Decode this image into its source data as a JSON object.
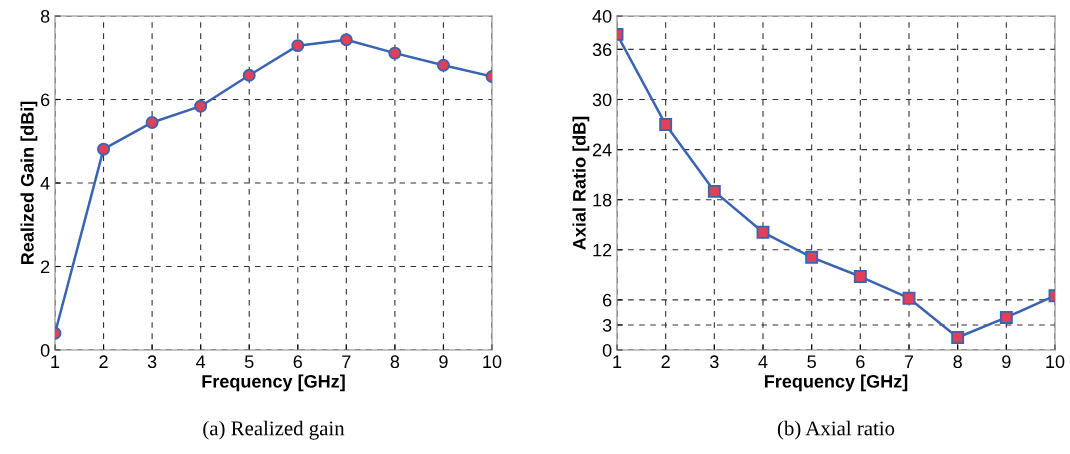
{
  "chart_data": [
    {
      "type": "line",
      "title": "(a) Realized gain",
      "xlabel": "Frequency [GHz]",
      "ylabel": "Realized Gain [dBi]",
      "x": [
        1,
        2,
        3,
        4,
        5,
        6,
        7,
        8,
        9,
        10
      ],
      "xlim": [
        1,
        10
      ],
      "xticks": [
        1,
        2,
        3,
        4,
        5,
        6,
        7,
        8,
        9,
        10
      ],
      "ylim": [
        0,
        8
      ],
      "yticks": [
        0,
        2,
        4,
        6,
        8
      ],
      "grid": true,
      "marker": "circle",
      "line_style": "solid",
      "series": [
        {
          "color": "#3a63b0",
          "values": [
            0.4,
            4.81,
            5.45,
            5.84,
            6.58,
            7.29,
            7.43,
            7.11,
            6.82,
            6.55
          ]
        }
      ]
    },
    {
      "type": "line",
      "title": "(b) Axial ratio",
      "xlabel": "Frequency [GHz]",
      "ylabel": "Axial Ratio [dB]",
      "x": [
        1,
        2,
        3,
        4,
        5,
        6,
        7,
        8,
        9,
        10
      ],
      "xlim": [
        1,
        10
      ],
      "xticks": [
        1,
        2,
        3,
        4,
        5,
        6,
        7,
        8,
        9,
        10
      ],
      "ylim": [
        0,
        40
      ],
      "yticks": [
        0,
        3,
        6,
        12,
        18,
        24,
        30,
        36,
        40
      ],
      "grid": true,
      "marker": "square",
      "line_style": "solid",
      "series": [
        {
          "color": "#3a63b0",
          "values": [
            37.8,
            27.0,
            19.0,
            14.1,
            11.1,
            8.8,
            6.2,
            1.5,
            3.9,
            6.5
          ]
        }
      ]
    }
  ]
}
